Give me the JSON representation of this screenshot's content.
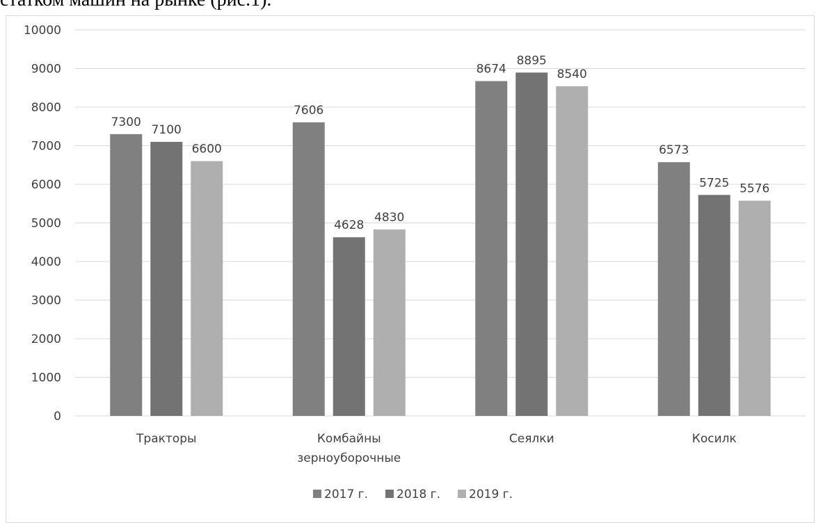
{
  "document": {
    "text_above": "статком машин на рынке (рис.1)."
  },
  "chart_data": {
    "type": "bar",
    "categories": [
      [
        "Тракторы"
      ],
      [
        "Комбайны",
        "зерноуборочные"
      ],
      [
        "Сеялки"
      ],
      [
        "Косилк"
      ]
    ],
    "series": [
      {
        "name": "2017 г.",
        "color": "#808080",
        "values": [
          7300,
          7606,
          8674,
          6573
        ]
      },
      {
        "name": "2018 г.",
        "color": "#737373",
        "values": [
          7100,
          4628,
          8895,
          5725
        ]
      },
      {
        "name": "2019 г.",
        "color": "#afafaf",
        "values": [
          6600,
          4830,
          8540,
          5576
        ]
      }
    ],
    "ylim": [
      0,
      10000
    ],
    "yticks": [
      0,
      1000,
      2000,
      3000,
      4000,
      5000,
      6000,
      7000,
      8000,
      9000,
      10000
    ],
    "grid": true,
    "legend": "bottom",
    "data_labels": true,
    "title": "",
    "xlabel": "",
    "ylabel": ""
  }
}
